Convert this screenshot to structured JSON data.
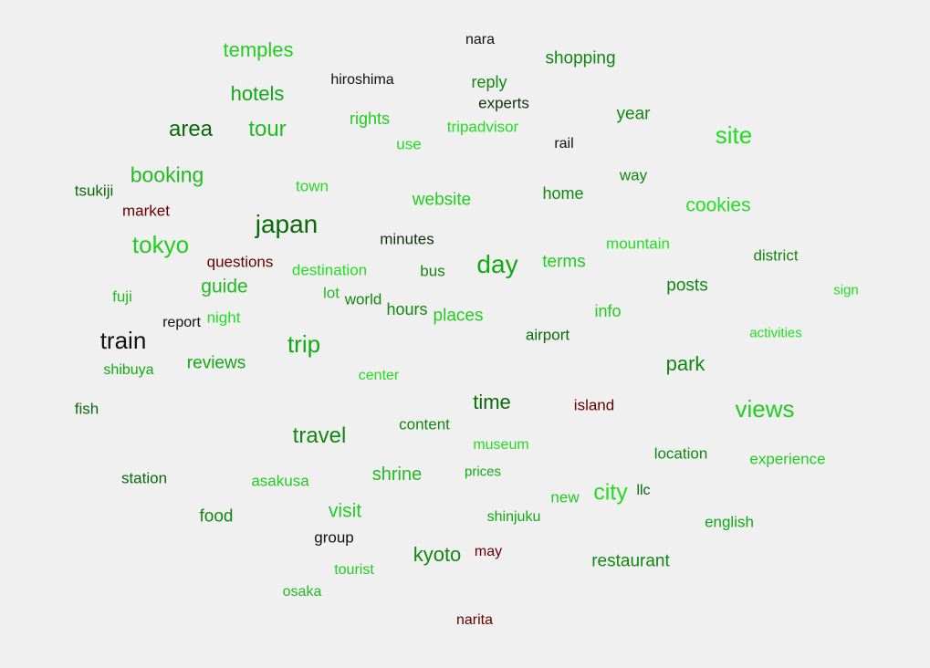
{
  "palette": {
    "background": "#f0f0f0",
    "bright_green": "#22dd22",
    "medium_green": "#11aa11",
    "dark_green": "#0a6a0a",
    "near_black": "#111111",
    "dark_red": "#660000"
  },
  "words": [
    {
      "text": "temples",
      "color": "#22cc22"
    },
    {
      "text": "nara",
      "color": "#111111"
    },
    {
      "text": "shopping",
      "color": "#118811"
    },
    {
      "text": "hiroshima",
      "color": "#111111"
    },
    {
      "text": "reply",
      "color": "#118811"
    },
    {
      "text": "hotels",
      "color": "#11aa11"
    },
    {
      "text": "experts",
      "color": "#113311"
    },
    {
      "text": "year",
      "color": "#118811"
    },
    {
      "text": "rights",
      "color": "#22cc22"
    },
    {
      "text": "area",
      "color": "#0a6a0a"
    },
    {
      "text": "tour",
      "color": "#22bb22"
    },
    {
      "text": "tripadvisor",
      "color": "#22dd22"
    },
    {
      "text": "site",
      "color": "#22dd22"
    },
    {
      "text": "use",
      "color": "#22dd22"
    },
    {
      "text": "rail",
      "color": "#111111"
    },
    {
      "text": "booking",
      "color": "#22bb22"
    },
    {
      "text": "way",
      "color": "#118811"
    },
    {
      "text": "tsukiji",
      "color": "#0a6a0a"
    },
    {
      "text": "town",
      "color": "#22dd22"
    },
    {
      "text": "home",
      "color": "#118811"
    },
    {
      "text": "website",
      "color": "#22cc22"
    },
    {
      "text": "cookies",
      "color": "#22dd22"
    },
    {
      "text": "market",
      "color": "#660000"
    },
    {
      "text": "japan",
      "color": "#0a6a0a"
    },
    {
      "text": "minutes",
      "color": "#113311"
    },
    {
      "text": "mountain",
      "color": "#22dd22"
    },
    {
      "text": "tokyo",
      "color": "#22cc22"
    },
    {
      "text": "district",
      "color": "#118811"
    },
    {
      "text": "questions",
      "color": "#660000"
    },
    {
      "text": "day",
      "color": "#11aa11"
    },
    {
      "text": "terms",
      "color": "#22cc22"
    },
    {
      "text": "destination",
      "color": "#22dd22"
    },
    {
      "text": "bus",
      "color": "#118811"
    },
    {
      "text": "guide",
      "color": "#22bb22"
    },
    {
      "text": "posts",
      "color": "#118811"
    },
    {
      "text": "sign",
      "color": "#22dd22"
    },
    {
      "text": "fuji",
      "color": "#22bb22"
    },
    {
      "text": "lot",
      "color": "#22bb22"
    },
    {
      "text": "world",
      "color": "#118811"
    },
    {
      "text": "hours",
      "color": "#118811"
    },
    {
      "text": "info",
      "color": "#22cc22"
    },
    {
      "text": "report",
      "color": "#111111"
    },
    {
      "text": "night",
      "color": "#22dd22"
    },
    {
      "text": "places",
      "color": "#22cc22"
    },
    {
      "text": "activities",
      "color": "#22dd22"
    },
    {
      "text": "train",
      "color": "#111111"
    },
    {
      "text": "airport",
      "color": "#0a6a0a"
    },
    {
      "text": "trip",
      "color": "#11aa11"
    },
    {
      "text": "park",
      "color": "#118811"
    },
    {
      "text": "shibuya",
      "color": "#11aa11"
    },
    {
      "text": "reviews",
      "color": "#11aa11"
    },
    {
      "text": "center",
      "color": "#22dd22"
    },
    {
      "text": "fish",
      "color": "#0a6a0a"
    },
    {
      "text": "time",
      "color": "#0a6a0a"
    },
    {
      "text": "island",
      "color": "#660000"
    },
    {
      "text": "views",
      "color": "#22cc22"
    },
    {
      "text": "content",
      "color": "#118811"
    },
    {
      "text": "travel",
      "color": "#118811"
    },
    {
      "text": "museum",
      "color": "#22dd22"
    },
    {
      "text": "location",
      "color": "#118811"
    },
    {
      "text": "experience",
      "color": "#22cc22"
    },
    {
      "text": "station",
      "color": "#0a6a0a"
    },
    {
      "text": "asakusa",
      "color": "#22cc22"
    },
    {
      "text": "shrine",
      "color": "#22bb22"
    },
    {
      "text": "prices",
      "color": "#11aa11"
    },
    {
      "text": "new",
      "color": "#22cc22"
    },
    {
      "text": "city",
      "color": "#22dd22"
    },
    {
      "text": "llc",
      "color": "#0a6a0a"
    },
    {
      "text": "food",
      "color": "#118811"
    },
    {
      "text": "visit",
      "color": "#22cc22"
    },
    {
      "text": "shinjuku",
      "color": "#11aa11"
    },
    {
      "text": "english",
      "color": "#11aa11"
    },
    {
      "text": "group",
      "color": "#111111"
    },
    {
      "text": "kyoto",
      "color": "#118811"
    },
    {
      "text": "may",
      "color": "#660000"
    },
    {
      "text": "restaurant",
      "color": "#118811"
    },
    {
      "text": "tourist",
      "color": "#22cc22"
    },
    {
      "text": "osaka",
      "color": "#22bb22"
    },
    {
      "text": "narita",
      "color": "#660000"
    }
  ]
}
